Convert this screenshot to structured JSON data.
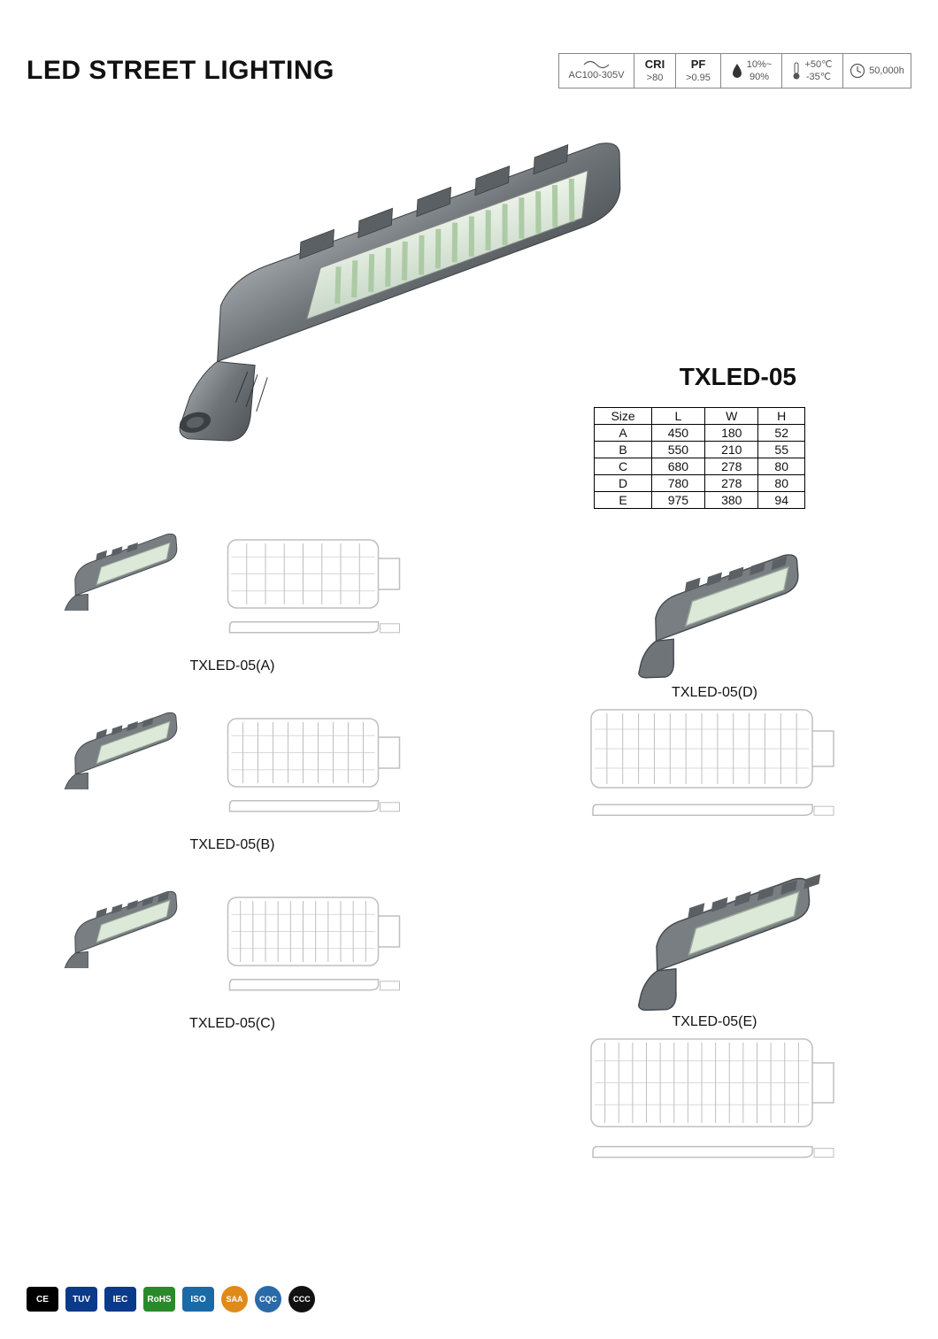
{
  "header": {
    "title": "LED STREET LIGHTING",
    "badges": {
      "voltage": "AC100-305V",
      "cri_label": "CRI",
      "cri_value": ">80",
      "pf_label": "PF",
      "pf_value": ">0.95",
      "humidity_top": "10%~",
      "humidity_bot": "90%",
      "temp_top": "+50℃",
      "temp_bot": "-35℃",
      "life": "50,000h"
    }
  },
  "hero": {
    "model": "TXLED-05",
    "colors": {
      "body": "#6e7478",
      "body_light": "#9aa0a4",
      "lens": "#d8e8d8",
      "led": "#d8e8c8",
      "line": "#bfbfbf"
    }
  },
  "size_table": {
    "columns": [
      "Size",
      "L",
      "W",
      "H"
    ],
    "rows": [
      [
        "A",
        "450",
        "180",
        "52"
      ],
      [
        "B",
        "550",
        "210",
        "55"
      ],
      [
        "C",
        "680",
        "278",
        "80"
      ],
      [
        "D",
        "780",
        "278",
        "80"
      ],
      [
        "E",
        "975",
        "380",
        "94"
      ]
    ]
  },
  "variants": {
    "a": "TXLED-05(A)",
    "b": "TXLED-05(B)",
    "c": "TXLED-05(C)",
    "d": "TXLED-05(D)",
    "e": "TXLED-05(E)"
  },
  "certs": [
    {
      "label": "CE",
      "bg": "#000000",
      "fg": "#ffffff"
    },
    {
      "label": "TUV",
      "bg": "#0a3a8a",
      "fg": "#ffffff"
    },
    {
      "label": "IEC",
      "bg": "#0a3a8a",
      "fg": "#ffffff"
    },
    {
      "label": "RoHS",
      "bg": "#2a8a2a",
      "fg": "#ffffff"
    },
    {
      "label": "ISO",
      "bg": "#1a6aa8",
      "fg": "#ffffff"
    },
    {
      "label": "SAA",
      "bg": "#e08a1a",
      "fg": "#ffffff"
    },
    {
      "label": "CQC",
      "bg": "#2a6aa8",
      "fg": "#ffffff"
    },
    {
      "label": "CCC",
      "bg": "#111111",
      "fg": "#ffffff"
    }
  ]
}
